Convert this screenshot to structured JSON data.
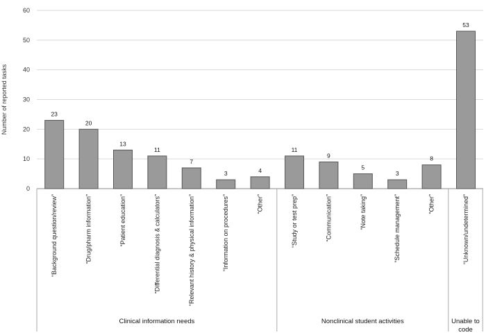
{
  "chart_data": {
    "type": "bar",
    "ylabel": "Number of reported tasks",
    "ylim": [
      0,
      60
    ],
    "yticks": [
      0,
      10,
      20,
      30,
      40,
      50,
      60
    ],
    "grid": true,
    "categories": [
      "“Background question/review”",
      "“Drug/pharm information”",
      "“Patient education”",
      "“Differential diagnosis & calculators”",
      "“Relevant history & physical information”",
      "“Information on procedures”",
      "“Other”",
      "“Study or test prep”",
      "“Communication”",
      "“Note taking”",
      "“Schedule management”",
      "“Other”",
      "“Unknown/undetermined”"
    ],
    "values": [
      23,
      20,
      13,
      11,
      7,
      3,
      4,
      11,
      9,
      5,
      3,
      8,
      53
    ],
    "groups": [
      {
        "label": "Clinical information needs",
        "start": 0,
        "end": 6
      },
      {
        "label": "Nonclinical student activities",
        "start": 7,
        "end": 11
      },
      {
        "label": "Unable to code",
        "start": 12,
        "end": 12
      }
    ],
    "bar_color": "#9a9a9a",
    "bar_edge_color": "#555555"
  }
}
